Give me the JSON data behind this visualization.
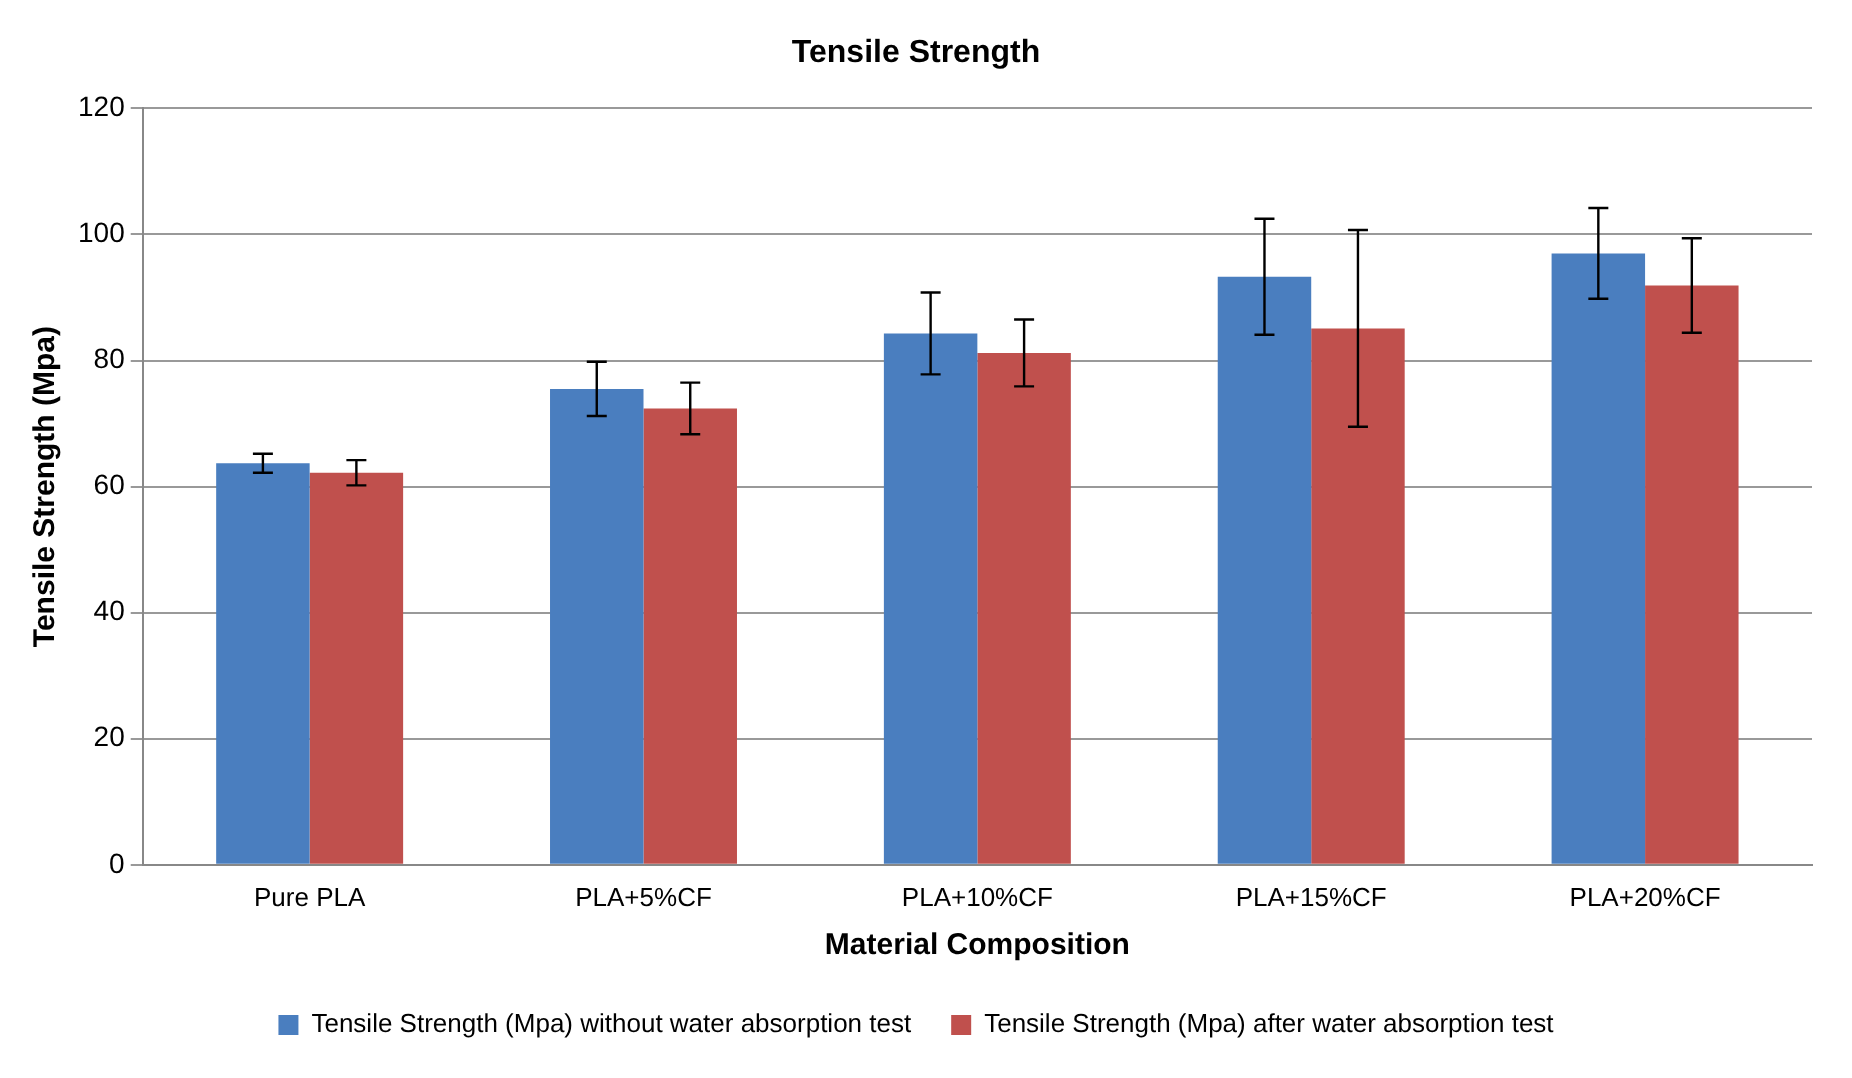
{
  "chart_data": {
    "type": "bar",
    "title": "Tensile Strength",
    "xlabel": "Material Composition",
    "ylabel": "Tensile Strength (Mpa)",
    "categories": [
      "Pure PLA",
      "PLA+5%CF",
      "PLA+10%CF",
      "PLA+15%CF",
      "PLA+20%CF"
    ],
    "series": [
      {
        "name": "Tensile Strength (Mpa) without water absorption test",
        "color": "#4a7ebf",
        "values": [
          63.7,
          75.5,
          84.3,
          93.3,
          97.0
        ],
        "errors": [
          1.5,
          4.3,
          6.5,
          9.2,
          7.2
        ]
      },
      {
        "name": "Tensile Strength (Mpa) after water absorption test",
        "color": "#c0504d",
        "values": [
          62.2,
          72.4,
          81.2,
          85.1,
          91.9
        ],
        "errors": [
          2,
          4.1,
          5.3,
          15.6,
          7.5
        ]
      }
    ],
    "ylim": [
      0,
      120
    ],
    "yticks": [
      0,
      20,
      40,
      60,
      80,
      100,
      120
    ],
    "grid": "y",
    "legend": "bottom"
  }
}
